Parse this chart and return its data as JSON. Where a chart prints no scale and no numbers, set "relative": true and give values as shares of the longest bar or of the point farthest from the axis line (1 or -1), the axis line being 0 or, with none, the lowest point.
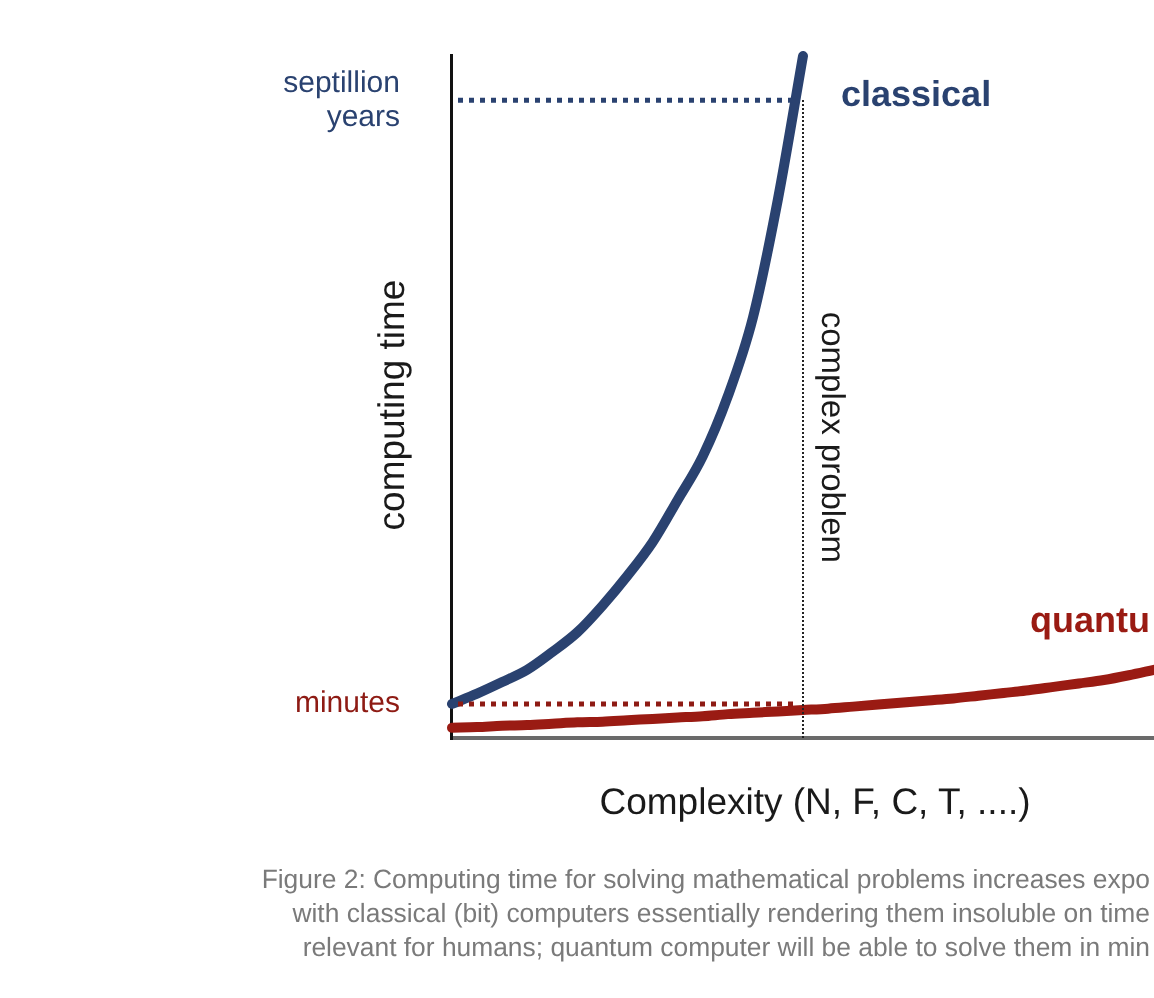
{
  "chart_data": {
    "type": "line",
    "xlabel": "Complexity (N, F, C, T, ....)",
    "ylabel": "computing time",
    "relative": true,
    "legend": false,
    "grid": false,
    "marker": "none",
    "line_style": "solid",
    "categories": [
      null,
      null,
      null,
      null,
      null,
      null,
      null,
      null,
      null,
      null,
      null,
      null,
      null,
      null,
      null,
      null,
      null,
      null,
      null,
      null,
      null,
      null,
      null,
      null,
      null,
      null,
      null,
      null,
      null
    ],
    "series": [
      {
        "name": "classical",
        "color": "#2a4270",
        "values": [
          0.05,
          0.065,
          0.082,
          0.1,
          0.126,
          0.155,
          0.194,
          0.238,
          0.287,
          0.349,
          0.413,
          0.501,
          0.616,
          0.79,
          1.0,
          null,
          null,
          null,
          null,
          null,
          null,
          null,
          null,
          null,
          null,
          null,
          null,
          null,
          null
        ]
      },
      {
        "name": "quantu",
        "color": "#9a1b13",
        "values": [
          0.015,
          0.016,
          0.018,
          0.019,
          0.021,
          0.023,
          0.024,
          0.026,
          0.028,
          0.03,
          0.032,
          0.035,
          0.037,
          0.039,
          0.041,
          0.043,
          0.046,
          0.049,
          0.052,
          0.055,
          0.058,
          0.062,
          0.066,
          0.07,
          0.075,
          0.08,
          0.085,
          0.092,
          0.1
        ]
      }
    ],
    "ref_lines": [
      {
        "axis": "y",
        "value": 0.935,
        "label": "septillion years",
        "color": "#2a4270",
        "line_style": "dotted"
      },
      {
        "axis": "y",
        "value": 0.05,
        "label": "minutes",
        "color": "#8e1b14",
        "line_style": "dotted"
      }
    ],
    "annotations": [
      "complex problem",
      "Figure 2: Computing time for solving mathematical problems increases expo",
      "with classical (bit) computers essentially rendering them insoluble on time",
      "relevant for humans; quantum computer will be able to solve them in min"
    ]
  }
}
